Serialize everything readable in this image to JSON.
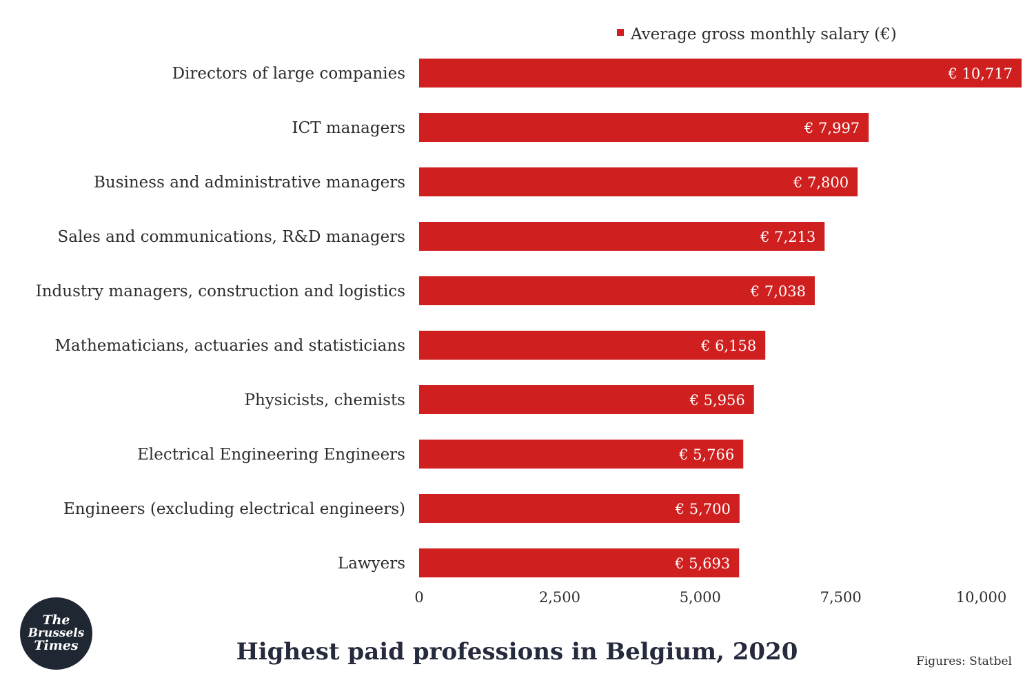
{
  "title": "Highest paid professions in Belgium, 2020",
  "source": "Figures: Statbel",
  "logo": {
    "line1": "The",
    "line2": "Brussels",
    "line3": "Times"
  },
  "colors": {
    "bar": "#cf1f1f",
    "text": "#2d2d2d",
    "title": "#252a3d",
    "logo_bg": "#1f2733"
  },
  "chart_data": {
    "type": "bar",
    "orientation": "horizontal",
    "categories": [
      "Directors of large companies",
      "ICT managers",
      "Business and administrative managers",
      "Sales and communications, R&D managers",
      "Industry managers, construction and logistics",
      "Mathematicians, actuaries and statisticians",
      "Physicists, chemists",
      "Electrical Engineering Engineers",
      "Engineers (excluding electrical engineers)",
      "Lawyers"
    ],
    "series": [
      {
        "name": "Average gross monthly salary (€)",
        "values": [
          10717,
          7997,
          7800,
          7213,
          7038,
          6158,
          5956,
          5766,
          5700,
          5693
        ]
      }
    ],
    "data_labels": [
      "€ 10,717",
      "€ 7,997",
      "€ 7,800",
      "€ 7,213",
      "€ 7,038",
      "€ 6,158",
      "€ 5,956",
      "€ 5,766",
      "€ 5,700",
      "€ 5,693"
    ],
    "xlim": [
      0,
      10717
    ],
    "xticks": [
      0,
      2500,
      5000,
      7500,
      10000
    ],
    "xtick_labels": [
      "0",
      "2,500",
      "5,000",
      "7,500",
      "10,000"
    ],
    "legend_position": "top-right",
    "grid": false
  }
}
